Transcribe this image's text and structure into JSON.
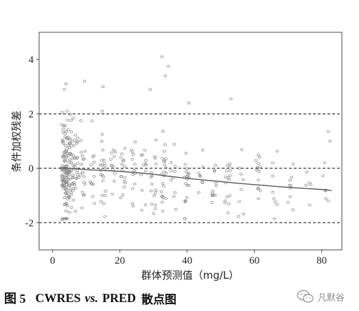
{
  "chart_data": {
    "type": "scatter",
    "xlabel": "群体预测值（mg/L）",
    "ylabel": "条件加权残差",
    "xlim": [
      -4,
      86
    ],
    "ylim": [
      -3,
      5
    ],
    "xticks": [
      "0",
      "20",
      "40",
      "60",
      "80"
    ],
    "yticks": [
      "-2",
      "0",
      "2",
      "4"
    ],
    "reference_lines_y": [
      -2,
      0,
      2
    ],
    "trend": {
      "x": [
        2,
        5,
        10,
        15,
        20,
        25,
        30,
        35,
        40,
        45,
        50,
        55,
        60,
        65,
        70,
        75,
        80,
        83
      ],
      "y": [
        0.02,
        0.0,
        -0.05,
        -0.08,
        -0.11,
        -0.16,
        -0.22,
        -0.3,
        -0.37,
        -0.43,
        -0.49,
        -0.55,
        -0.6,
        -0.65,
        -0.7,
        -0.74,
        -0.78,
        -0.82
      ]
    },
    "notable_points": [
      {
        "x": 32.5,
        "y": 4.1
      },
      {
        "x": 34.5,
        "y": 3.75
      },
      {
        "x": 33.5,
        "y": 3.4
      },
      {
        "x": 9.5,
        "y": 3.2
      },
      {
        "x": 4,
        "y": 3.1
      },
      {
        "x": 3.5,
        "y": 2.9
      },
      {
        "x": 53,
        "y": 2.55
      },
      {
        "x": 40.5,
        "y": 2.4
      },
      {
        "x": 29,
        "y": 2.9
      },
      {
        "x": 15,
        "y": 3.0
      },
      {
        "x": 82,
        "y": 1.35
      },
      {
        "x": 82.5,
        "y": 1.0
      },
      {
        "x": 2.8,
        "y": -1.9
      },
      {
        "x": 70,
        "y": -1.25
      },
      {
        "x": 82,
        "y": -1.2
      }
    ],
    "columns": [
      {
        "x": 3.5,
        "n": 75,
        "mean": 0.05,
        "sd": 0.95
      },
      {
        "x": 4.5,
        "n": 55,
        "mean": 0.0,
        "sd": 0.9
      },
      {
        "x": 5.5,
        "n": 35,
        "mean": -0.05,
        "sd": 0.85
      },
      {
        "x": 7,
        "n": 25,
        "mean": -0.05,
        "sd": 0.8
      },
      {
        "x": 9,
        "n": 18,
        "mean": -0.1,
        "sd": 0.75
      },
      {
        "x": 12,
        "n": 12,
        "mean": -0.1,
        "sd": 0.7
      },
      {
        "x": 15,
        "n": 22,
        "mean": -0.1,
        "sd": 0.8
      },
      {
        "x": 18,
        "n": 12,
        "mean": -0.15,
        "sd": 0.7
      },
      {
        "x": 21,
        "n": 16,
        "mean": -0.15,
        "sd": 0.75
      },
      {
        "x": 24,
        "n": 14,
        "mean": -0.2,
        "sd": 0.7
      },
      {
        "x": 27,
        "n": 12,
        "mean": -0.2,
        "sd": 0.7
      },
      {
        "x": 30,
        "n": 16,
        "mean": -0.3,
        "sd": 0.75
      },
      {
        "x": 33,
        "n": 22,
        "mean": -0.3,
        "sd": 0.7
      },
      {
        "x": 36,
        "n": 10,
        "mean": -0.35,
        "sd": 0.65
      },
      {
        "x": 40,
        "n": 20,
        "mean": -0.4,
        "sd": 0.7
      },
      {
        "x": 44,
        "n": 8,
        "mean": -0.45,
        "sd": 0.6
      },
      {
        "x": 48,
        "n": 12,
        "mean": -0.5,
        "sd": 0.6
      },
      {
        "x": 52,
        "n": 16,
        "mean": -0.5,
        "sd": 0.65
      },
      {
        "x": 56,
        "n": 8,
        "mean": -0.55,
        "sd": 0.6
      },
      {
        "x": 61,
        "n": 14,
        "mean": -0.6,
        "sd": 0.6
      },
      {
        "x": 66,
        "n": 8,
        "mean": -0.6,
        "sd": 0.55
      },
      {
        "x": 71,
        "n": 8,
        "mean": -0.7,
        "sd": 0.55
      },
      {
        "x": 76,
        "n": 5,
        "mean": -0.75,
        "sd": 0.5
      },
      {
        "x": 81,
        "n": 5,
        "mean": -0.8,
        "sd": 0.5
      }
    ]
  },
  "caption": {
    "figure_label": "图 5",
    "title_part1": "CWRES",
    "title_vs": "vs.",
    "title_part2": "PRED",
    "title_zh": "散点图"
  },
  "watermark": {
    "text": "凡默谷"
  }
}
